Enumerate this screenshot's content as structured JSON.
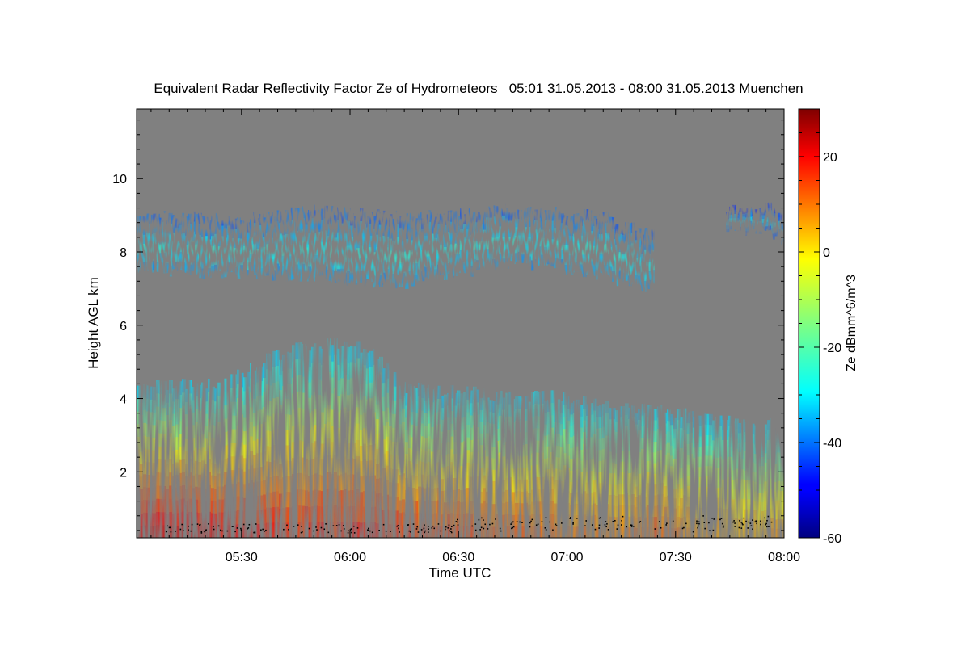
{
  "chart_data": {
    "type": "heatmap",
    "title": "Equivalent Radar Reflectivity Factor Ze of Hydrometeors   05:01 31.05.2013 - 08:00 31.05.2013 Muenchen",
    "xlabel": "Time UTC",
    "ylabel": "Height AGL km",
    "xlim": [
      "05:01",
      "08:00"
    ],
    "ylim": [
      0.2,
      11.9
    ],
    "x_ticks": [
      "05:30",
      "06:00",
      "06:30",
      "07:00",
      "07:30",
      "08:00"
    ],
    "y_ticks": [
      2,
      4,
      6,
      8,
      10
    ],
    "colorbar": {
      "label": "Ze dBmm^6/m^3",
      "range": [
        -60,
        30
      ],
      "ticks": [
        -60,
        -40,
        -20,
        0,
        20
      ],
      "colormap": "jet"
    },
    "background_color": "#808080",
    "upper_cloud_layer": {
      "time": [
        "05:01",
        "05:15",
        "05:30",
        "05:45",
        "06:00",
        "06:15",
        "06:30",
        "06:45",
        "07:00",
        "07:10",
        "07:20",
        "07:24"
      ],
      "top_km": [
        9.1,
        9.0,
        8.9,
        9.2,
        9.1,
        9.0,
        9.1,
        9.2,
        9.1,
        9.0,
        8.6,
        8.5
      ],
      "base_km": [
        7.5,
        7.4,
        7.4,
        7.3,
        7.2,
        7.1,
        7.4,
        7.7,
        7.5,
        7.3,
        7.0,
        7.0
      ],
      "ze_core_dbz": -25
    },
    "upper_cloud_layer_2": {
      "time": [
        "07:44",
        "07:55",
        "08:00"
      ],
      "top_km": [
        9.2,
        9.3,
        9.1
      ],
      "base_km": [
        8.6,
        8.5,
        8.3
      ],
      "ze_core_dbz": -30
    },
    "lower_precipitation": {
      "time": [
        "05:01",
        "05:15",
        "05:25",
        "05:35",
        "05:45",
        "05:55",
        "06:05",
        "06:15",
        "06:25",
        "06:35",
        "06:45",
        "06:55",
        "07:05",
        "07:15",
        "07:25",
        "07:35",
        "07:45",
        "07:55",
        "08:00"
      ],
      "echo_top_km": [
        4.3,
        4.4,
        4.4,
        5.0,
        5.4,
        5.5,
        5.4,
        4.3,
        4.2,
        4.2,
        4.0,
        4.1,
        3.9,
        3.7,
        3.7,
        3.5,
        3.4,
        3.3,
        3.4
      ],
      "max_ze_dbz": [
        22,
        22,
        20,
        18,
        16,
        17,
        18,
        14,
        14,
        12,
        12,
        10,
        8,
        7,
        12,
        6,
        4,
        3,
        3
      ]
    }
  }
}
